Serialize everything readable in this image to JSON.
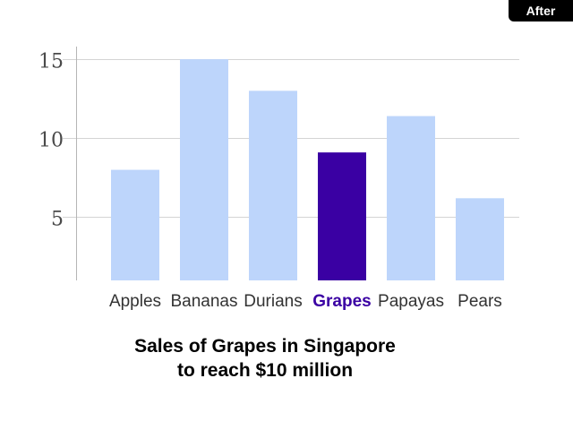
{
  "badge": {
    "label": "After"
  },
  "caption": {
    "line1": "Sales of Grapes in Singapore",
    "line2": "to reach $10 million"
  },
  "chart_data": {
    "type": "bar",
    "categories": [
      "Apples",
      "Bananas",
      "Durians",
      "Grapes",
      "Papayas",
      "Pears"
    ],
    "values": [
      8,
      15,
      13,
      9.1,
      11.4,
      6.2
    ],
    "highlight": "Grapes",
    "title": "",
    "xlabel": "",
    "ylabel": "",
    "ylim": [
      1,
      15.8
    ],
    "yticks": [
      5,
      10,
      15
    ],
    "grid": true,
    "legend": "none"
  },
  "colors": {
    "bar": "#bdd5fb",
    "highlight": "#3a00a3",
    "grid": "#d4d4d4",
    "axis": "#b5b5b5",
    "tick_label": "#4a4a4a",
    "category_label": "#333333"
  }
}
